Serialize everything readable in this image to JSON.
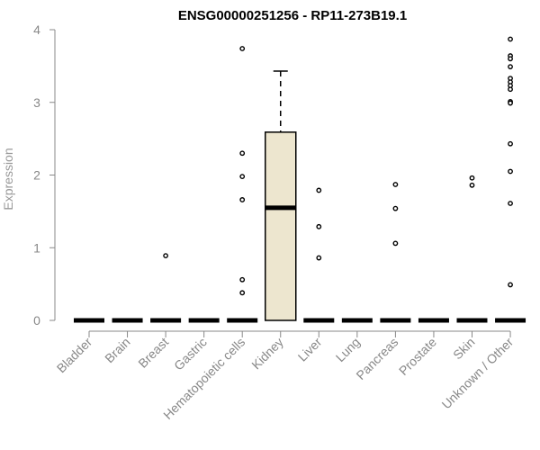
{
  "chart_data": {
    "type": "box",
    "title": "ENSG00000251256 - RP11-273B19.1",
    "xlabel": "",
    "ylabel": "Expression",
    "ylim": [
      0,
      4
    ],
    "yticks": [
      0,
      1,
      2,
      3,
      4
    ],
    "grid": false,
    "box_fill": "#ede6cf",
    "categories": [
      "Bladder",
      "Brain",
      "Breast",
      "Gastric",
      "Hematopoietic cells",
      "Kidney",
      "Liver",
      "Lung",
      "Pancreas",
      "Prostate",
      "Skin",
      "Unknown / Other"
    ],
    "boxes": [
      {
        "category": "Bladder",
        "q1": 0,
        "median": 0,
        "q3": 0,
        "whisker_low": 0,
        "whisker_high": 0,
        "outliers": []
      },
      {
        "category": "Brain",
        "q1": 0,
        "median": 0,
        "q3": 0,
        "whisker_low": 0,
        "whisker_high": 0,
        "outliers": []
      },
      {
        "category": "Breast",
        "q1": 0,
        "median": 0,
        "q3": 0,
        "whisker_low": 0,
        "whisker_high": 0,
        "outliers": [
          0.89
        ]
      },
      {
        "category": "Gastric",
        "q1": 0,
        "median": 0,
        "q3": 0,
        "whisker_low": 0,
        "whisker_high": 0,
        "outliers": []
      },
      {
        "category": "Hematopoietic cells",
        "q1": 0,
        "median": 0,
        "q3": 0,
        "whisker_low": 0,
        "whisker_high": 0,
        "outliers": [
          3.74,
          2.3,
          1.98,
          1.66,
          0.56,
          0.38
        ]
      },
      {
        "category": "Kidney",
        "q1": 0,
        "median": 1.55,
        "q3": 2.59,
        "whisker_low": 0,
        "whisker_high": 3.43,
        "outliers": []
      },
      {
        "category": "Liver",
        "q1": 0,
        "median": 0,
        "q3": 0,
        "whisker_low": 0,
        "whisker_high": 0,
        "outliers": [
          1.79,
          1.29,
          0.86
        ]
      },
      {
        "category": "Lung",
        "q1": 0,
        "median": 0,
        "q3": 0,
        "whisker_low": 0,
        "whisker_high": 0,
        "outliers": []
      },
      {
        "category": "Pancreas",
        "q1": 0,
        "median": 0,
        "q3": 0,
        "whisker_low": 0,
        "whisker_high": 0,
        "outliers": [
          1.87,
          1.54,
          1.06
        ]
      },
      {
        "category": "Prostate",
        "q1": 0,
        "median": 0,
        "q3": 0,
        "whisker_low": 0,
        "whisker_high": 0,
        "outliers": []
      },
      {
        "category": "Skin",
        "q1": 0,
        "median": 0,
        "q3": 0,
        "whisker_low": 0,
        "whisker_high": 0,
        "outliers": [
          1.96,
          1.86
        ]
      },
      {
        "category": "Unknown / Other",
        "q1": 0,
        "median": 0,
        "q3": 0,
        "whisker_low": 0,
        "whisker_high": 0,
        "outliers": [
          3.87,
          3.64,
          3.6,
          3.49,
          3.33,
          3.28,
          3.23,
          3.18,
          3.01,
          2.99,
          2.43,
          2.05,
          1.61,
          0.49
        ]
      }
    ]
  }
}
